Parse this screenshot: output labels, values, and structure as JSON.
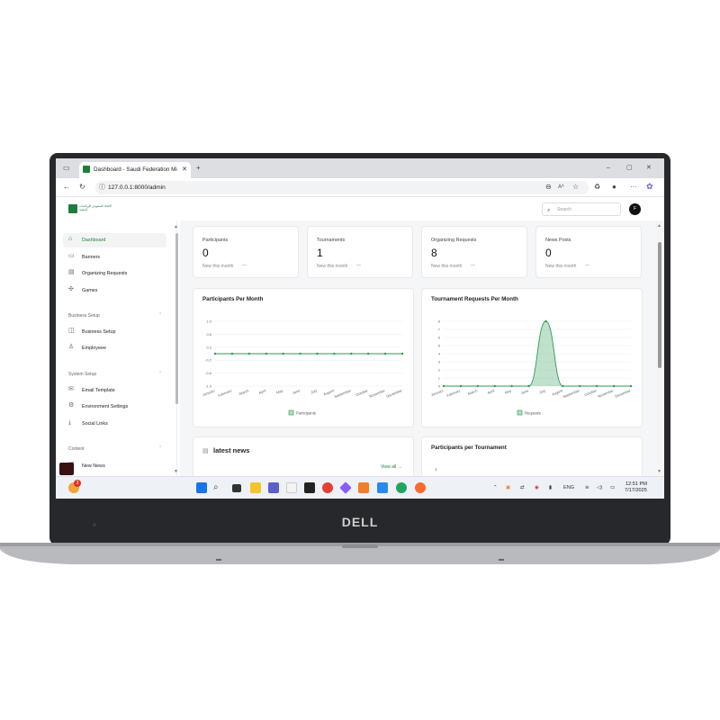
{
  "browser": {
    "tab_title": "Dashboard - Saudi Federation Mi",
    "url": "127.0.0.1:8000/admin"
  },
  "header": {
    "logo_text": "الاتحاد السعودي للرياضات الذهنية",
    "search_placeholder": "Search",
    "avatar_letter": "F"
  },
  "sidebar": {
    "items": [
      {
        "label": "Dashboard",
        "icon": "home-icon",
        "active": true
      },
      {
        "label": "Banners",
        "icon": "image-icon"
      },
      {
        "label": "Organizing Requests",
        "icon": "calendar-icon"
      },
      {
        "label": "Games",
        "icon": "puzzle-icon"
      }
    ],
    "business": {
      "heading": "Business Setup",
      "items": [
        {
          "label": "Business Setup",
          "icon": "briefcase-icon"
        },
        {
          "label": "Employeee",
          "icon": "user-icon"
        }
      ]
    },
    "system": {
      "heading": "System Setup",
      "items": [
        {
          "label": "Email Template",
          "icon": "mail-icon"
        },
        {
          "label": "Environment Settings",
          "icon": "gear-icon"
        },
        {
          "label": "Social Links",
          "icon": "share-icon"
        }
      ]
    },
    "content": {
      "heading": "Content",
      "items": [
        {
          "label": "New News",
          "icon": "news-icon"
        }
      ]
    }
  },
  "stats": [
    {
      "label": "Participants",
      "value": "0",
      "sub": "New this month"
    },
    {
      "label": "Tournaments",
      "value": "1",
      "sub": "New this month"
    },
    {
      "label": "Organizing Requests",
      "value": "8",
      "sub": "New this month"
    },
    {
      "label": "News Posts",
      "value": "0",
      "sub": "New this month"
    }
  ],
  "cards": {
    "latest_news": "latest news",
    "view_all": "View all →",
    "participants_per_tournament": "Participants per Tournament",
    "ppt_tick": "1"
  },
  "chart_data": [
    {
      "type": "line",
      "title": "Participants Per Month",
      "categories": [
        "January",
        "February",
        "March",
        "April",
        "May",
        "June",
        "July",
        "August",
        "September",
        "October",
        "November",
        "December"
      ],
      "series": [
        {
          "name": "Participants",
          "values": [
            0,
            0,
            0,
            0,
            0,
            0,
            0,
            0,
            0,
            0,
            0,
            0
          ]
        }
      ],
      "yticks": [
        "1.0",
        "0.6",
        "0.2",
        "-0.2",
        "-0.6",
        "-1.0"
      ],
      "ylim": [
        -1,
        1
      ],
      "legend": "bottom",
      "color": "#2e9b55"
    },
    {
      "type": "area",
      "title": "Tournament Requests Per Month",
      "categories": [
        "January",
        "February",
        "March",
        "April",
        "May",
        "June",
        "July",
        "August",
        "September",
        "October",
        "November",
        "December"
      ],
      "series": [
        {
          "name": "Requests",
          "values": [
            0,
            0,
            0,
            0,
            0,
            0,
            8,
            0,
            0,
            0,
            0,
            0
          ]
        }
      ],
      "yticks": [
        "8",
        "7",
        "6",
        "5",
        "4",
        "3",
        "2",
        "1",
        "0"
      ],
      "ylim": [
        0,
        8
      ],
      "legend": "bottom",
      "color": "#2e9b55"
    }
  ],
  "taskbar": {
    "lang": "ENG",
    "time": "12:51 PM",
    "date": "7/17/2025",
    "badge": "3"
  },
  "laptop": {
    "brand": "DELL"
  }
}
